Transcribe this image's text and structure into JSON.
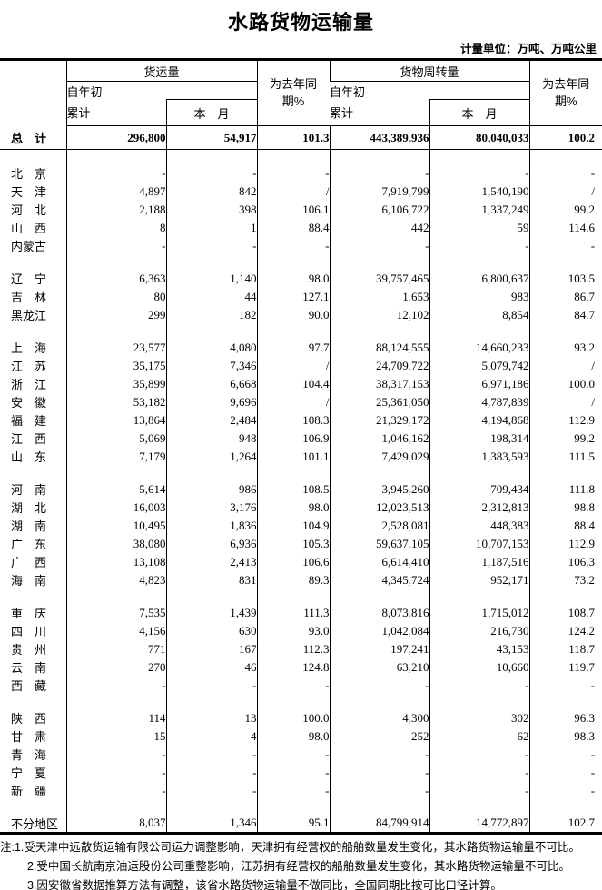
{
  "title": "水路货物运输量",
  "unit_note": "计量单位：万吨、万吨公里",
  "table": {
    "header": {
      "group1": "货运量",
      "group2": "货物周转量",
      "cum1": "自年初",
      "cum2": "累计",
      "month": "本　月",
      "yoy1": "为去年同",
      "yoy2": "期%"
    },
    "total": {
      "label": "总　计",
      "values": [
        "296,800",
        "54,917",
        "101.3",
        "443,389,936",
        "80,040,033",
        "100.2"
      ]
    },
    "sections": [
      {
        "rows": [
          {
            "label": "北　京",
            "values": [
              "-",
              "-",
              "-",
              "-",
              "-",
              "-"
            ]
          },
          {
            "label": "天　津",
            "values": [
              "4,897",
              "842",
              "/",
              "7,919,799",
              "1,540,190",
              "/"
            ]
          },
          {
            "label": "河　北",
            "values": [
              "2,188",
              "398",
              "106.1",
              "6,106,722",
              "1,337,249",
              "99.2"
            ]
          },
          {
            "label": "山　西",
            "values": [
              "8",
              "1",
              "88.4",
              "442",
              "59",
              "114.6"
            ]
          },
          {
            "label": "内蒙古",
            "values": [
              "-",
              "-",
              "-",
              "-",
              "-",
              "-"
            ]
          }
        ]
      },
      {
        "rows": [
          {
            "label": "辽　宁",
            "values": [
              "6,363",
              "1,140",
              "98.0",
              "39,757,465",
              "6,800,637",
              "103.5"
            ]
          },
          {
            "label": "吉　林",
            "values": [
              "80",
              "44",
              "127.1",
              "1,653",
              "983",
              "86.7"
            ]
          },
          {
            "label": "黑龙江",
            "values": [
              "299",
              "182",
              "90.0",
              "12,102",
              "8,854",
              "84.7"
            ]
          }
        ]
      },
      {
        "rows": [
          {
            "label": "上　海",
            "values": [
              "23,577",
              "4,080",
              "97.7",
              "88,124,555",
              "14,660,233",
              "93.2"
            ]
          },
          {
            "label": "江　苏",
            "values": [
              "35,175",
              "7,346",
              "/",
              "24,709,722",
              "5,079,742",
              "/"
            ]
          },
          {
            "label": "浙　江",
            "values": [
              "35,899",
              "6,668",
              "104.4",
              "38,317,153",
              "6,971,186",
              "100.0"
            ]
          },
          {
            "label": "安　徽",
            "values": [
              "53,182",
              "9,696",
              "/",
              "25,361,050",
              "4,787,839",
              "/"
            ]
          },
          {
            "label": "福　建",
            "values": [
              "13,864",
              "2,484",
              "108.3",
              "21,329,172",
              "4,194,868",
              "112.9"
            ]
          },
          {
            "label": "江　西",
            "values": [
              "5,069",
              "948",
              "106.9",
              "1,046,162",
              "198,314",
              "99.2"
            ]
          },
          {
            "label": "山　东",
            "values": [
              "7,179",
              "1,264",
              "101.1",
              "7,429,029",
              "1,383,593",
              "111.5"
            ]
          }
        ]
      },
      {
        "rows": [
          {
            "label": "河　南",
            "values": [
              "5,614",
              "986",
              "108.5",
              "3,945,260",
              "709,434",
              "111.8"
            ]
          },
          {
            "label": "湖　北",
            "values": [
              "16,003",
              "3,176",
              "98.0",
              "12,023,513",
              "2,312,813",
              "98.8"
            ]
          },
          {
            "label": "湖　南",
            "values": [
              "10,495",
              "1,836",
              "104.9",
              "2,528,081",
              "448,383",
              "88.4"
            ]
          },
          {
            "label": "广　东",
            "values": [
              "38,080",
              "6,936",
              "105.3",
              "59,637,105",
              "10,707,153",
              "112.9"
            ]
          },
          {
            "label": "广　西",
            "values": [
              "13,108",
              "2,413",
              "106.6",
              "6,614,410",
              "1,187,516",
              "106.3"
            ]
          },
          {
            "label": "海　南",
            "values": [
              "4,823",
              "831",
              "89.3",
              "4,345,724",
              "952,171",
              "73.2"
            ]
          }
        ]
      },
      {
        "rows": [
          {
            "label": "重　庆",
            "values": [
              "7,535",
              "1,439",
              "111.3",
              "8,073,816",
              "1,715,012",
              "108.7"
            ]
          },
          {
            "label": "四　川",
            "values": [
              "4,156",
              "630",
              "93.0",
              "1,042,084",
              "216,730",
              "124.2"
            ]
          },
          {
            "label": "贵　州",
            "values": [
              "771",
              "167",
              "112.3",
              "197,241",
              "43,153",
              "118.7"
            ]
          },
          {
            "label": "云　南",
            "values": [
              "270",
              "46",
              "124.8",
              "63,210",
              "10,660",
              "119.7"
            ]
          },
          {
            "label": "西　藏",
            "values": [
              "-",
              "-",
              "-",
              "-",
              "-",
              "-"
            ]
          }
        ]
      },
      {
        "rows": [
          {
            "label": "陕　西",
            "values": [
              "114",
              "13",
              "100.0",
              "4,300",
              "302",
              "96.3"
            ]
          },
          {
            "label": "甘　肃",
            "values": [
              "15",
              "4",
              "98.0",
              "252",
              "62",
              "98.3"
            ]
          },
          {
            "label": "青　海",
            "values": [
              "-",
              "-",
              "-",
              "-",
              "-",
              "-"
            ]
          },
          {
            "label": "宁　夏",
            "values": [
              "-",
              "-",
              "-",
              "-",
              "-",
              "-"
            ]
          },
          {
            "label": "新　疆",
            "values": [
              "-",
              "-",
              "-",
              "-",
              "-",
              "-"
            ]
          }
        ]
      },
      {
        "rows": [
          {
            "label": "不分地区",
            "values": [
              "8,037",
              "1,346",
              "95.1",
              "84,799,914",
              "14,772,897",
              "102.7"
            ]
          }
        ]
      }
    ]
  },
  "notes": [
    "注:1.受天津中远散货运输有限公司运力调整影响，天津拥有经营权的船舶数量发生变化，其水路货物运输量不可比。",
    "2.受中国长航南京油运股份公司重整影响，江苏拥有经营权的船舶数量发生变化，其水路货物运输量不可比。",
    "3.因安徽省数据推算方法有调整，该省水路货物运输量不做同比，全国同期比按可比口径计算。"
  ]
}
